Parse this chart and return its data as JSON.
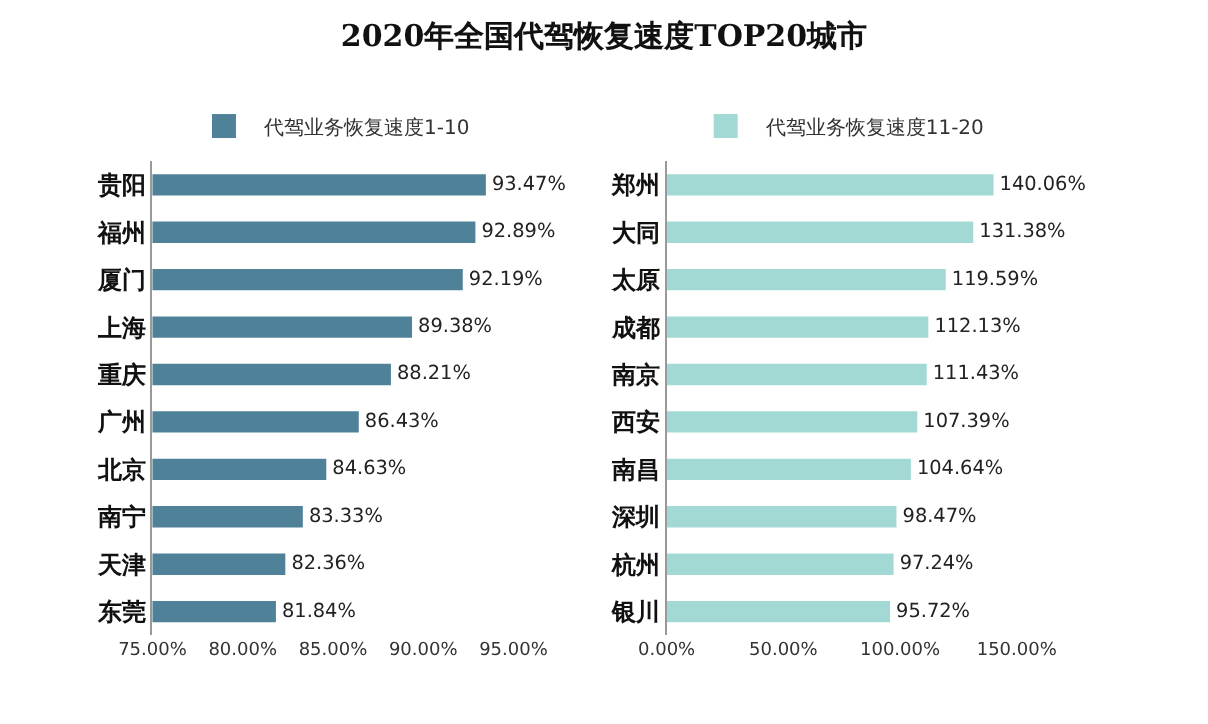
{
  "chart_data": [
    {
      "type": "bar",
      "title": "2020年全国代驾恢复速度TOP20城市",
      "orientation": "horizontal",
      "legend": "top",
      "categories": [
        "贵阳",
        "福州",
        "厦门",
        "上海",
        "重庆",
        "广州",
        "北京",
        "南宁",
        "天津",
        "东莞"
      ],
      "series": [
        {
          "name": "代驾业务恢复速度1-10",
          "color": "#4f8299",
          "values": [
            93.47,
            92.89,
            92.19,
            89.38,
            88.21,
            86.43,
            84.63,
            83.33,
            82.36,
            81.84
          ],
          "value_labels": [
            "93.47%",
            "92.89%",
            "92.19%",
            "89.38%",
            "88.21%",
            "86.43%",
            "84.63%",
            "83.33%",
            "82.36%",
            "81.84%"
          ]
        }
      ],
      "xlim": [
        75,
        95
      ],
      "xticks": [
        {
          "value": 75,
          "label": "75.00%"
        },
        {
          "value": 80,
          "label": "80.00%"
        },
        {
          "value": 85,
          "label": "85.00%"
        },
        {
          "value": 90,
          "label": "90.00%"
        },
        {
          "value": 95,
          "label": "95.00%"
        }
      ]
    },
    {
      "type": "bar",
      "orientation": "horizontal",
      "legend": "top",
      "categories": [
        "郑州",
        "大同",
        "太原",
        "成都",
        "南京",
        "西安",
        "南昌",
        "深圳",
        "杭州",
        "银川"
      ],
      "series": [
        {
          "name": "代驾业务恢复速度11-20",
          "color": "#a3d9d4",
          "values": [
            140.06,
            131.38,
            119.59,
            112.13,
            111.43,
            107.39,
            104.64,
            98.47,
            97.24,
            95.72
          ],
          "value_labels": [
            "140.06%",
            "131.38%",
            "119.59%",
            "112.13%",
            "111.43%",
            "107.39%",
            "104.64%",
            "98.47%",
            "97.24%",
            "95.72%"
          ]
        }
      ],
      "xlim": [
        0,
        150
      ],
      "xticks": [
        {
          "value": 0,
          "label": "0.00%"
        },
        {
          "value": 50,
          "label": "50.00%"
        },
        {
          "value": 100,
          "label": "100.00%"
        },
        {
          "value": 150,
          "label": "150.00%"
        }
      ]
    }
  ]
}
